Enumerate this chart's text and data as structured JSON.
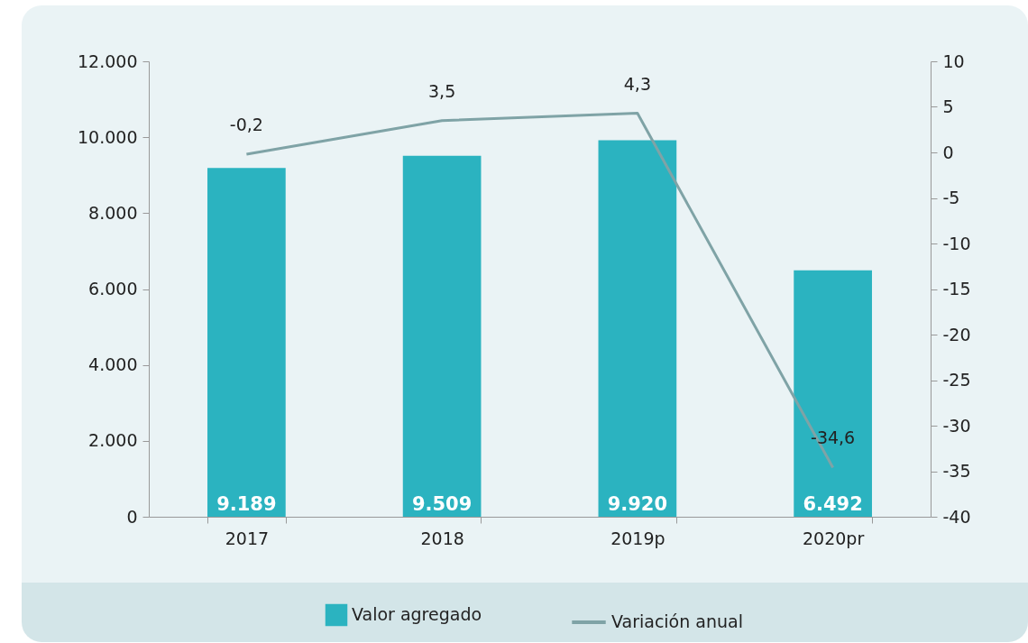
{
  "chart_data": {
    "type": "bar",
    "categories": [
      "2017",
      "2018",
      "2019p",
      "2020pr"
    ],
    "series": [
      {
        "name": "Valor agregado",
        "color": "#2bb3c0",
        "values": [
          9189,
          9509,
          9920,
          6492
        ],
        "value_labels": [
          "9.189",
          "9.509",
          "9.920",
          "6.492"
        ]
      },
      {
        "name": "Variación anual",
        "type": "line",
        "axis": "y2",
        "color": "#7fa3a6",
        "values": [
          -0.2,
          3.5,
          4.3,
          -34.6
        ],
        "value_labels": [
          "-0,2",
          "3,5",
          "4,3",
          "-34,6"
        ]
      }
    ],
    "ylim": [
      0,
      12000
    ],
    "yticks": [
      0,
      {
        "value": 2000,
        "label": "2.000"
      },
      {
        "value": 4000,
        "label": "4.000"
      },
      {
        "value": 6000,
        "label": "6.000"
      },
      {
        "value": 8000,
        "label": "8.000"
      },
      {
        "value": 10000,
        "label": "10.000"
      },
      {
        "value": 12000,
        "label": "12.000"
      }
    ],
    "y2lim": [
      -40,
      10
    ],
    "y2ticks": [
      -40,
      -35,
      -30,
      -25,
      -20,
      -15,
      -10,
      -5,
      0,
      5,
      10
    ],
    "grid": false,
    "legend": "bottom"
  }
}
